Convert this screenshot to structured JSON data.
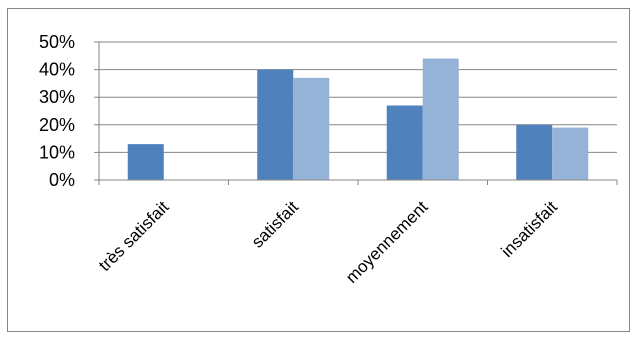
{
  "chart_data": {
    "type": "bar",
    "categories": [
      "très satisfait",
      "satisfait",
      "moyennement",
      "insatisfait"
    ],
    "series": [
      {
        "values": [
          0.13,
          0.4,
          0.27,
          0.2
        ],
        "color": "#4f81bd"
      },
      {
        "values": [
          null,
          0.37,
          0.44,
          0.19
        ],
        "color": "#95b3d7"
      }
    ],
    "ylim": [
      0,
      0.5
    ],
    "yticks": [
      0,
      0.1,
      0.2,
      0.3,
      0.4,
      0.5
    ],
    "ytick_labels": [
      "0%",
      "10%",
      "20%",
      "30%",
      "40%",
      "50%"
    ],
    "grid": true,
    "legend": "none",
    "title": "",
    "xlabel": "",
    "ylabel": ""
  }
}
